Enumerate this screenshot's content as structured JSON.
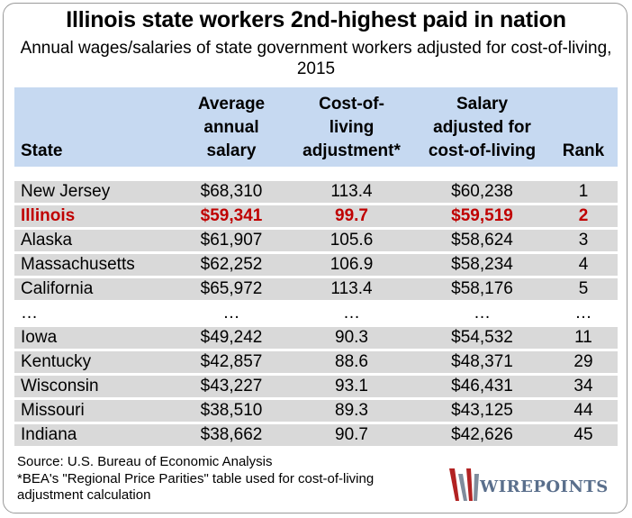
{
  "chart_data": {
    "type": "table",
    "title": "Illinois state workers 2nd-highest paid in nation",
    "subtitle": "Annual wages/salaries of state government workers adjusted for cost-of-living, 2015",
    "columns": [
      "State",
      "Average annual salary",
      "Cost-of-living adjustment*",
      "Salary adjusted for cost-of-living",
      "Rank"
    ],
    "rows": [
      {
        "state": "New Jersey",
        "avg": "$68,310",
        "col": "113.4",
        "adj": "$60,238",
        "rank": "1",
        "highlight": false
      },
      {
        "state": "Illinois",
        "avg": "$59,341",
        "col": "99.7",
        "adj": "$59,519",
        "rank": "2",
        "highlight": true
      },
      {
        "state": "Alaska",
        "avg": "$61,907",
        "col": "105.6",
        "adj": "$58,624",
        "rank": "3",
        "highlight": false
      },
      {
        "state": "Massachusetts",
        "avg": "$62,252",
        "col": "106.9",
        "adj": "$58,234",
        "rank": "4",
        "highlight": false
      },
      {
        "state": "California",
        "avg": "$65,972",
        "col": "113.4",
        "adj": "$58,176",
        "rank": "5",
        "highlight": false
      },
      {
        "state": "…",
        "avg": "…",
        "col": "…",
        "adj": "…",
        "rank": "…",
        "highlight": false
      },
      {
        "state": "Iowa",
        "avg": "$49,242",
        "col": "90.3",
        "adj": "$54,532",
        "rank": "11",
        "highlight": false
      },
      {
        "state": "Kentucky",
        "avg": "$42,857",
        "col": "88.6",
        "adj": "$48,371",
        "rank": "29",
        "highlight": false
      },
      {
        "state": "Wisconsin",
        "avg": "$43,227",
        "col": "93.1",
        "adj": "$46,431",
        "rank": "34",
        "highlight": false
      },
      {
        "state": "Missouri",
        "avg": "$38,510",
        "col": "89.3",
        "adj": "$43,125",
        "rank": "44",
        "highlight": false
      },
      {
        "state": "Indiana",
        "avg": "$38,662",
        "col": "90.7",
        "adj": "$42,626",
        "rank": "45",
        "highlight": false
      }
    ],
    "source": "Source: U.S. Bureau of Economic Analysis",
    "footnote": "*BEA's \"Regional Price Parities\" table used for cost-of-living adjustment calculation"
  },
  "logo": {
    "text": "WIREPOINTS"
  },
  "colors": {
    "header_band": "#c6d9f1",
    "shaded_row": "#d9d9d9",
    "highlight": "#c00000",
    "logo": "#5a6f8c",
    "logo_w_red": "#b22222",
    "logo_w_gray": "#7f8c9c"
  }
}
